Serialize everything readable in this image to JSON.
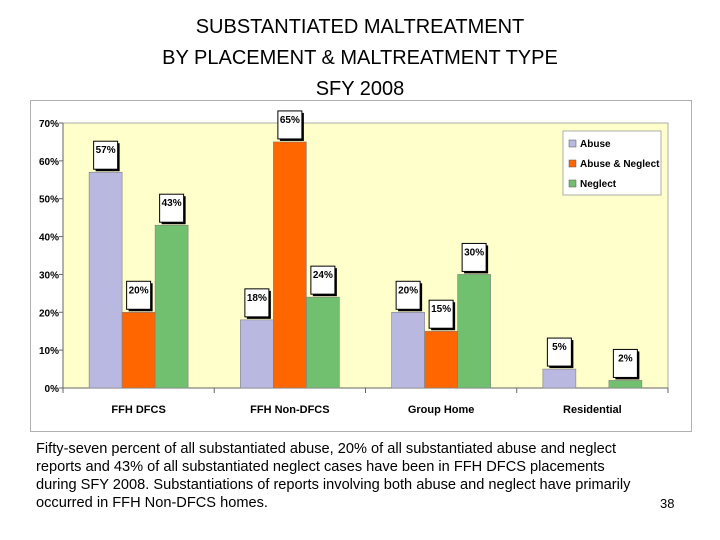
{
  "slide": {
    "title_lines": [
      "SUBSTANTIATED MALTREATMENT",
      "BY PLACEMENT & MALTREATMENT TYPE",
      "SFY 2008"
    ],
    "caption": "Fifty-seven percent of all substantiated abuse, 20% of all substantiated abuse and neglect reports and 43% of all substantiated neglect cases have been in FFH DFCS placements during SFY 2008.  Substantiations of reports involving both abuse and neglect have primarily occurred in FFH Non-DFCS homes.",
    "page_number": "38"
  },
  "chart_data": {
    "type": "bar",
    "title": "",
    "xlabel": "",
    "ylabel": "",
    "categories": [
      "FFH DFCS",
      "FFH Non-DFCS",
      "Group Home",
      "Residential"
    ],
    "series": [
      {
        "name": "Abuse",
        "color": "#b8b8e0",
        "values": [
          57,
          18,
          20,
          5
        ],
        "labels": [
          "57%",
          "18%",
          "20%",
          "5%"
        ]
      },
      {
        "name": "Abuse & Neglect",
        "color": "#ff6600",
        "values": [
          20,
          65,
          15,
          null
        ],
        "labels": [
          "20%",
          "65%",
          "15%",
          ""
        ]
      },
      {
        "name": "Neglect",
        "color": "#70c070",
        "values": [
          43,
          24,
          30,
          2
        ],
        "labels": [
          "43%",
          "24%",
          "30%",
          "2%"
        ]
      }
    ],
    "ylim": [
      0,
      70
    ],
    "yticks": [
      0,
      10,
      20,
      30,
      40,
      50,
      60,
      70
    ],
    "ytick_labels": [
      "0%",
      "10%",
      "20%",
      "30%",
      "40%",
      "50%",
      "60%",
      "70%"
    ],
    "grid": false,
    "legend": "top-right",
    "plot_bg": "#ffffcc"
  }
}
